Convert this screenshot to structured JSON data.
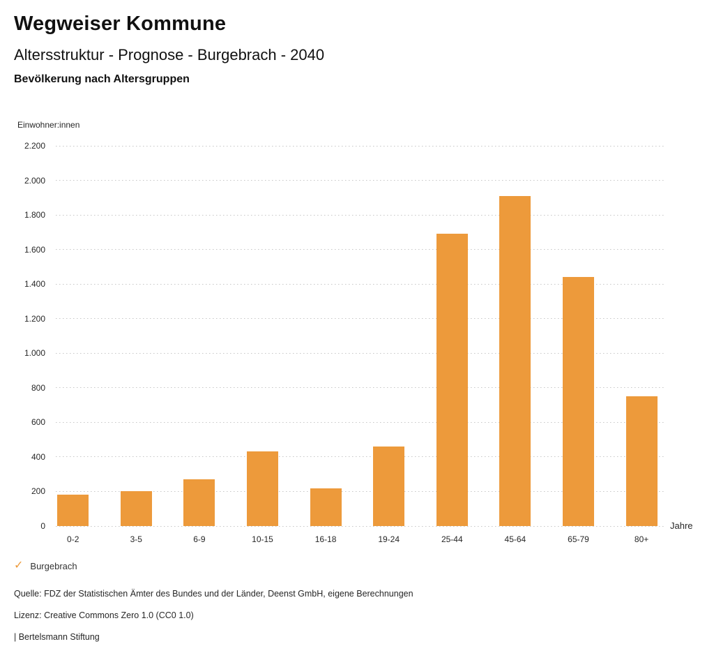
{
  "header": {
    "title": "Wegweiser Kommune",
    "subtitle": "Altersstruktur - Prognose - Burgebrach - 2040",
    "section_title": "Bevölkerung nach Altersgruppen"
  },
  "chart_data": {
    "type": "bar",
    "title": "Bevölkerung nach Altersgruppen",
    "categories": [
      "0-2",
      "3-5",
      "6-9",
      "10-15",
      "16-18",
      "19-24",
      "25-44",
      "45-64",
      "65-79",
      "80+"
    ],
    "series": [
      {
        "name": "Burgebrach",
        "values": [
          180,
          200,
          270,
          430,
          220,
          460,
          1690,
          1910,
          1440,
          750
        ]
      }
    ],
    "xlabel": "Jahre",
    "ylabel": "Einwohner:innen",
    "ylim": [
      0,
      2200
    ],
    "ytick_step": 200,
    "ytick_labels": [
      "0",
      "200",
      "400",
      "600",
      "800",
      "1.000",
      "1.200",
      "1.400",
      "1.600",
      "1.800",
      "2.000",
      "2.200"
    ],
    "grid": "horizontal-dotted",
    "legend_position": "bottom-left"
  },
  "legend": {
    "check_icon": "✓",
    "label": "Burgebrach"
  },
  "footer": {
    "source": "Quelle: FDZ der Statistischen Ämter des Bundes und der Länder, Deenst GmbH, eigene Berechnungen",
    "license": "Lizenz: Creative Commons Zero 1.0 (CC0 1.0)",
    "attribution": "| Bertelsmann Stiftung"
  },
  "colors": {
    "bar": "#ED9A3B",
    "check": "#ED9A3B",
    "grid": "#C6C6C6",
    "text": "#1A1A1A"
  }
}
